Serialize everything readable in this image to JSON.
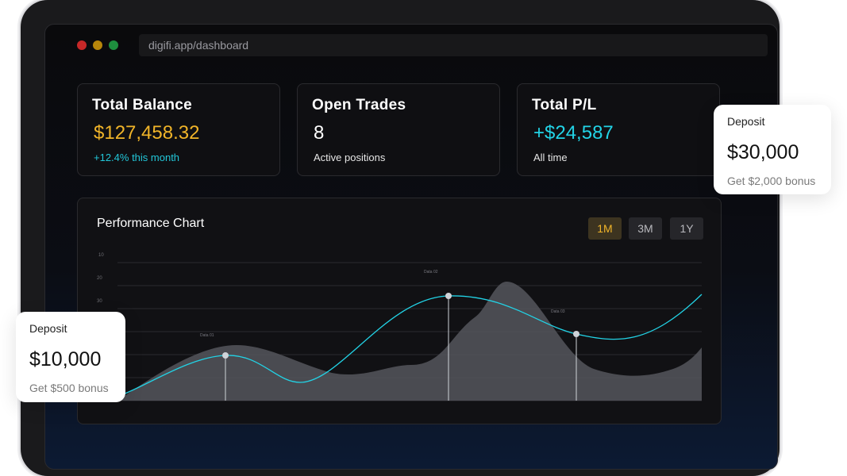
{
  "browser": {
    "url": "digifi.app/dashboard"
  },
  "cards": {
    "balance": {
      "title": "Total Balance",
      "value": "$127,458.32",
      "sub": "+12.4% this month",
      "value_color": "#f0b429",
      "sub_color": "#22c7d9"
    },
    "trades": {
      "title": "Open Trades",
      "value": "8",
      "sub": "Active positions",
      "value_color": "#ffffff",
      "sub_color": "#e6e6e6"
    },
    "pl": {
      "title": "Total P/L",
      "value": "+$24,587",
      "sub": "All time",
      "value_color": "#22d3e6",
      "sub_color": "#e6e6e6"
    }
  },
  "chart": {
    "title": "Performance Chart",
    "ranges": [
      "1M",
      "3M",
      "1Y"
    ],
    "active_range": "1M",
    "y_ticks": [
      "10",
      "20",
      "30"
    ],
    "point_labels": [
      "Data 01",
      "Data 02",
      "Data 03"
    ]
  },
  "chart_data": {
    "type": "area",
    "title": "Performance Chart",
    "ylabel": "",
    "xlabel": "",
    "grid": true,
    "y_tick_labels": [
      "10",
      "20",
      "30"
    ],
    "series": [
      {
        "type": "line",
        "color": "#22d3e6",
        "highlighted_points": [
          "Data 01",
          "Data 02",
          "Data 03"
        ]
      },
      {
        "type": "area",
        "color": "#55565c"
      }
    ]
  },
  "popups": {
    "right": {
      "label": "Deposit",
      "amount": "$30,000",
      "bonus": "Get $2,000 bonus"
    },
    "left": {
      "label": "Deposit",
      "amount": "$10,000",
      "bonus": "Get $500 bonus"
    }
  }
}
